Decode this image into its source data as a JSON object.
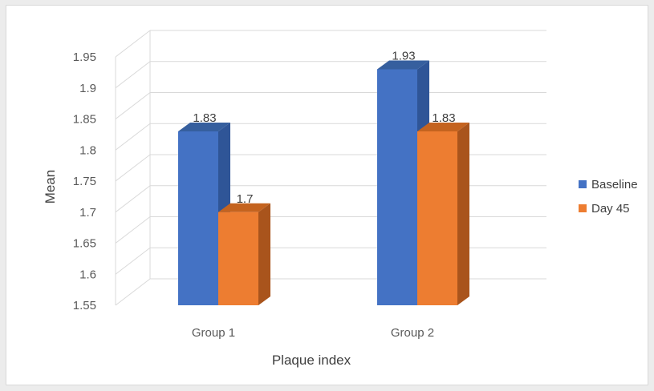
{
  "chart_data": {
    "type": "bar",
    "style": "3d-clustered-column",
    "categories": [
      "Group 1",
      "Group 2"
    ],
    "series": [
      {
        "name": "Baseline",
        "values": [
          1.83,
          1.93
        ],
        "color": "#4472C4",
        "side_color": "#2F5597",
        "top_color": "#365F9E"
      },
      {
        "name": "Day 45",
        "values": [
          1.7,
          1.83
        ],
        "color": "#ED7D31",
        "side_color": "#A9541C",
        "top_color": "#C4631F"
      }
    ],
    "data_labels": [
      [
        "1.83",
        "1.93"
      ],
      [
        "1.7",
        "1.83"
      ]
    ],
    "title": "",
    "xlabel": "Plaque index",
    "ylabel": "Mean",
    "ylim": [
      1.55,
      1.95
    ],
    "y_ticks": [
      "1.95",
      "1.9",
      "1.85",
      "1.8",
      "1.75",
      "1.7",
      "1.65",
      "1.6",
      "1.55"
    ],
    "grid": true,
    "legend_position": "right"
  }
}
